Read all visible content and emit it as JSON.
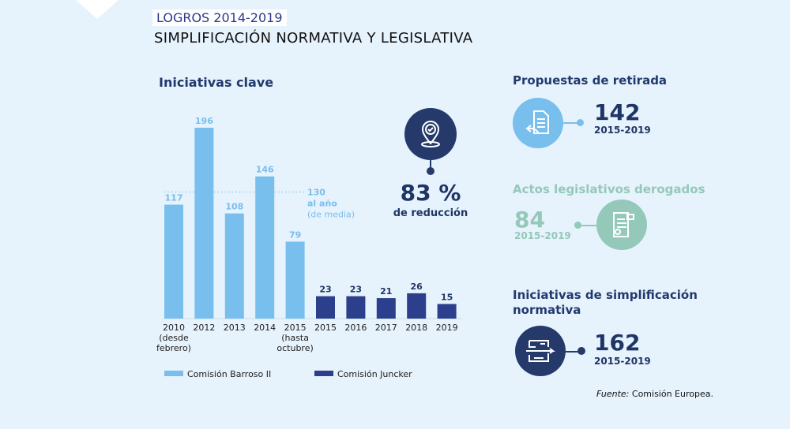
{
  "header": {
    "tag": "LOGROS 2014-2019",
    "title": "SIMPLIFICACIÓN NORMATIVA Y LEGISLATIVA"
  },
  "chart_data": {
    "type": "bar",
    "title": "Iniciativas clave",
    "categories": [
      [
        "2010",
        "(desde",
        "febrero)"
      ],
      [
        "2012"
      ],
      [
        "2013"
      ],
      [
        "2014"
      ],
      [
        "2015",
        "(hasta",
        "octubre)"
      ],
      [
        "2015"
      ],
      [
        "2016"
      ],
      [
        "2017"
      ],
      [
        "2018"
      ],
      [
        "2019"
      ]
    ],
    "values": [
      117,
      196,
      108,
      146,
      79,
      23,
      23,
      21,
      26,
      15
    ],
    "series_membership": [
      "Comisión Barroso II",
      "Comisión Barroso II",
      "Comisión Barroso II",
      "Comisión Barroso II",
      "Comisión Barroso II",
      "Comisión Juncker",
      "Comisión Juncker",
      "Comisión Juncker",
      "Comisión Juncker",
      "Comisión Juncker"
    ],
    "legend": [
      {
        "name": "Comisión Barroso II",
        "color": "#78bfee"
      },
      {
        "name": "Comisión Juncker",
        "color": "#2b3f8c"
      }
    ],
    "legend_position": "bottom",
    "reference_line": {
      "value": 130,
      "label": [
        "130",
        "al año",
        "(de media)"
      ]
    },
    "ylim": [
      0,
      200
    ],
    "grid": false
  },
  "reduction": {
    "value": "83 %",
    "label": "de reducción",
    "icon": "location-check-icon"
  },
  "stats": [
    {
      "title": "Propuestas de retirada",
      "value": "142",
      "period": "2015-2019",
      "color": "#78bfee",
      "icon": "document-return-icon"
    },
    {
      "title": "Actos legislativos derogados",
      "value": "84",
      "period": "2015-2019",
      "color": "#94c9b9",
      "icon": "certificate-remove-icon"
    },
    {
      "title": "Iniciativas de simplificación normativa",
      "value": "162",
      "period": "2015-2019",
      "color": "#253a6b",
      "icon": "maze-icon"
    }
  ],
  "source": {
    "label": "Fuente:",
    "text": " Comisión Europea."
  }
}
